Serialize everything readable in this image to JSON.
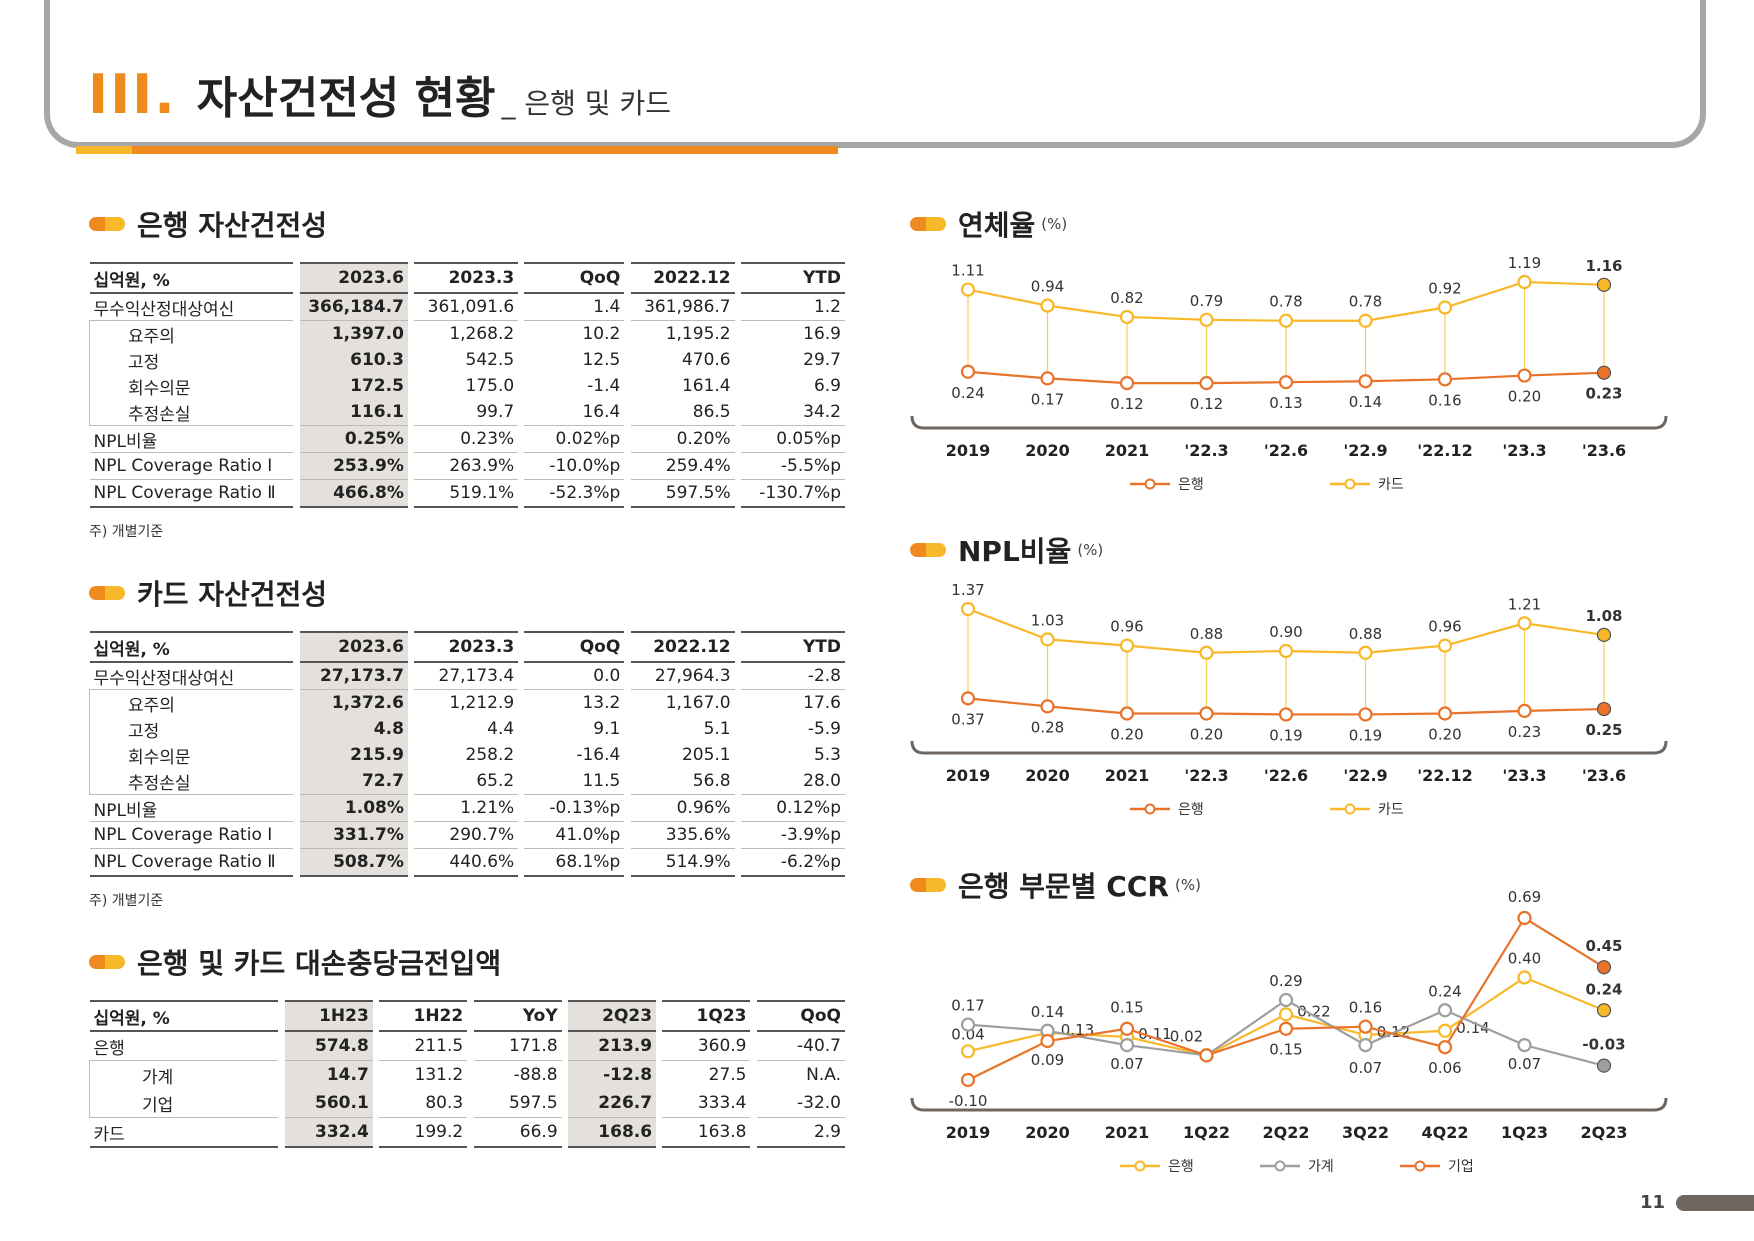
{
  "header": {
    "roman": "III",
    "title": "자산건전성 현황",
    "subtitle": "_ 은행 및 카드"
  },
  "bank_table": {
    "title": "은행 자산건전성",
    "unit_label": "십억원, %",
    "columns": [
      "2023.6",
      "2023.3",
      "QoQ",
      "2022.12",
      "YTD"
    ],
    "rows": [
      {
        "label": "무수익산정대상여신",
        "values": [
          "366,184.7",
          "361,091.6",
          "1.4",
          "361,986.7",
          "1.2"
        ]
      },
      {
        "label": "요주의",
        "values": [
          "1,397.0",
          "1,268.2",
          "10.2",
          "1,195.2",
          "16.9"
        ]
      },
      {
        "label": "고정",
        "values": [
          "610.3",
          "542.5",
          "12.5",
          "470.6",
          "29.7"
        ]
      },
      {
        "label": "회수의문",
        "values": [
          "172.5",
          "175.0",
          "-1.4",
          "161.4",
          "6.9"
        ]
      },
      {
        "label": "추정손실",
        "values": [
          "116.1",
          "99.7",
          "16.4",
          "86.5",
          "34.2"
        ]
      },
      {
        "label": "NPL비율",
        "values": [
          "0.25%",
          "0.23%",
          "0.02%p",
          "0.20%",
          "0.05%p"
        ]
      },
      {
        "label": "NPL Coverage Ratio Ⅰ",
        "values": [
          "253.9%",
          "263.9%",
          "-10.0%p",
          "259.4%",
          "-5.5%p"
        ]
      },
      {
        "label": "NPL Coverage Ratio Ⅱ",
        "values": [
          "466.8%",
          "519.1%",
          "-52.3%p",
          "597.5%",
          "-130.7%p"
        ]
      }
    ],
    "note": "주) 개별기준"
  },
  "card_table": {
    "title": "카드 자산건전성",
    "unit_label": "십억원, %",
    "columns": [
      "2023.6",
      "2023.3",
      "QoQ",
      "2022.12",
      "YTD"
    ],
    "rows": [
      {
        "label": "무수익산정대상여신",
        "values": [
          "27,173.7",
          "27,173.4",
          "0.0",
          "27,964.3",
          "-2.8"
        ]
      },
      {
        "label": "요주의",
        "values": [
          "1,372.6",
          "1,212.9",
          "13.2",
          "1,167.0",
          "17.6"
        ]
      },
      {
        "label": "고정",
        "values": [
          "4.8",
          "4.4",
          "9.1",
          "5.1",
          "-5.9"
        ]
      },
      {
        "label": "회수의문",
        "values": [
          "215.9",
          "258.2",
          "-16.4",
          "205.1",
          "5.3"
        ]
      },
      {
        "label": "추정손실",
        "values": [
          "72.7",
          "65.2",
          "11.5",
          "56.8",
          "28.0"
        ]
      },
      {
        "label": "NPL비율",
        "values": [
          "1.08%",
          "1.21%",
          "-0.13%p",
          "0.96%",
          "0.12%p"
        ]
      },
      {
        "label": "NPL Coverage Ratio Ⅰ",
        "values": [
          "331.7%",
          "290.7%",
          "41.0%p",
          "335.6%",
          "-3.9%p"
        ]
      },
      {
        "label": "NPL Coverage Ratio Ⅱ",
        "values": [
          "508.7%",
          "440.6%",
          "68.1%p",
          "514.9%",
          "-6.2%p"
        ]
      }
    ],
    "note": "주) 개별기준"
  },
  "provision_table": {
    "title": "은행 및 카드 대손충당금전입액",
    "unit_label": "십억원, %",
    "columns": [
      "1H23",
      "1H22",
      "YoY",
      "2Q23",
      "1Q23",
      "QoQ"
    ],
    "rows": [
      {
        "label": "은행",
        "values": [
          "574.8",
          "211.5",
          "171.8",
          "213.9",
          "360.9",
          "-40.7"
        ]
      },
      {
        "label": "가계",
        "values": [
          "14.7",
          "131.2",
          "-88.8",
          "-12.8",
          "27.5",
          "N.A."
        ]
      },
      {
        "label": "기업",
        "values": [
          "560.1",
          "80.3",
          "597.5",
          "226.7",
          "333.4",
          "-32.0"
        ]
      },
      {
        "label": "카드",
        "values": [
          "332.4",
          "199.2",
          "66.9",
          "168.6",
          "163.8",
          "2.9"
        ]
      }
    ]
  },
  "chart_data": [
    {
      "type": "line",
      "title": "연체율",
      "unit": "(%)",
      "categories": [
        "2019",
        "2020",
        "2021",
        "'22.3",
        "'22.6",
        "'22.9",
        "'22.12",
        "'23.3",
        "'23.6"
      ],
      "series": [
        {
          "name": "은행",
          "color": "#e8732a",
          "values": [
            0.24,
            0.17,
            0.12,
            0.12,
            0.13,
            0.14,
            0.16,
            0.2,
            0.23
          ]
        },
        {
          "name": "카드",
          "color": "#f7b82a",
          "values": [
            1.11,
            0.94,
            0.82,
            0.79,
            0.78,
            0.78,
            0.92,
            1.19,
            1.16
          ]
        }
      ],
      "labels": {
        "은행": [
          "0.24",
          "0.17",
          "0.12",
          "0.12",
          "0.13",
          "0.14",
          "0.16",
          "0.20",
          "0.23"
        ],
        "카드": [
          "1.11",
          "0.94",
          "0.82",
          "0.79",
          "0.78",
          "0.78",
          "0.92",
          "1.19",
          "1.16"
        ]
      }
    },
    {
      "type": "line",
      "title": "NPL비율",
      "unit": "(%)",
      "categories": [
        "2019",
        "2020",
        "2021",
        "'22.3",
        "'22.6",
        "'22.9",
        "'22.12",
        "'23.3",
        "'23.6"
      ],
      "series": [
        {
          "name": "은행",
          "color": "#e8732a",
          "values": [
            0.37,
            0.28,
            0.2,
            0.2,
            0.19,
            0.19,
            0.2,
            0.23,
            0.25
          ]
        },
        {
          "name": "카드",
          "color": "#f7b82a",
          "values": [
            1.37,
            1.03,
            0.96,
            0.88,
            0.9,
            0.88,
            0.96,
            1.21,
            1.08
          ]
        }
      ],
      "labels": {
        "은행": [
          "0.37",
          "0.28",
          "0.20",
          "0.20",
          "0.19",
          "0.19",
          "0.20",
          "0.23",
          "0.25"
        ],
        "카드": [
          "1.37",
          "1.03",
          "0.96",
          "0.88",
          "0.90",
          "0.88",
          "0.96",
          "1.21",
          "1.08"
        ]
      }
    },
    {
      "type": "line",
      "title": "은행 부문별 CCR",
      "unit": "(%)",
      "categories": [
        "2019",
        "2020",
        "2021",
        "1Q22",
        "2Q22",
        "3Q22",
        "4Q22",
        "1Q23",
        "2Q23"
      ],
      "series": [
        {
          "name": "은행",
          "color": "#f7b82a",
          "values": [
            0.04,
            0.13,
            0.11,
            0.02,
            0.22,
            0.12,
            0.14,
            0.4,
            0.24
          ]
        },
        {
          "name": "가계",
          "color": "#9e9e9e",
          "values": [
            0.17,
            0.14,
            0.07,
            0.02,
            0.29,
            0.07,
            0.24,
            0.07,
            -0.03
          ]
        },
        {
          "name": "기업",
          "color": "#e8732a",
          "values": [
            -0.1,
            0.09,
            0.15,
            0.02,
            0.15,
            0.16,
            0.06,
            0.69,
            0.45
          ]
        }
      ],
      "labels": {
        "은행": [
          "0.04",
          "0.13",
          "0.11",
          "",
          "0.22",
          "0.12",
          "0.14",
          "0.40",
          "0.24"
        ],
        "가계": [
          "0.17",
          "0.14",
          "0.07",
          "",
          "0.29",
          "0.07",
          "0.24",
          "0.07",
          "-0.03"
        ],
        "기업": [
          "-0.10",
          "0.09",
          "0.15",
          "0.02",
          "0.15",
          "0.16",
          "0.06",
          "0.69",
          "0.45"
        ]
      }
    }
  ],
  "page_number": "11"
}
